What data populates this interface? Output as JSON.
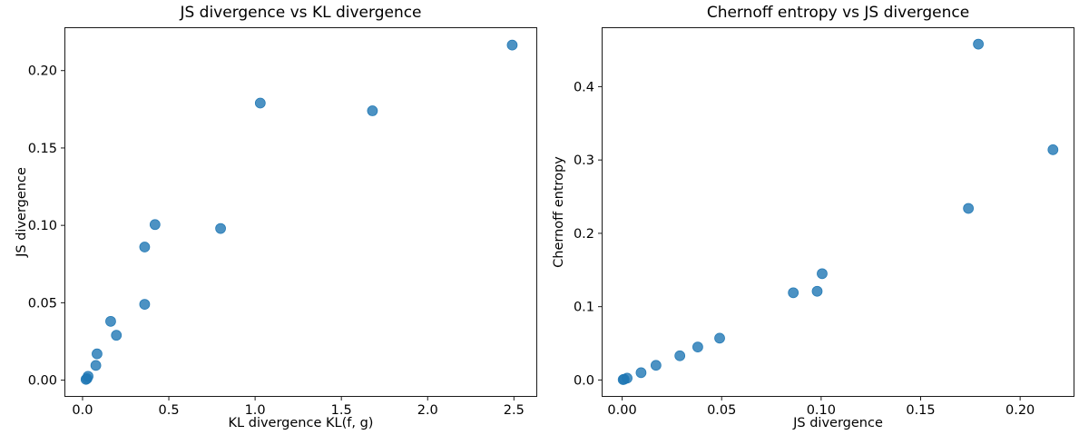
{
  "figure": {
    "background": "#ffffff"
  },
  "marker": {
    "color": "#1f77b4",
    "opacity": 0.8,
    "radius": 5.5
  },
  "chart_data": [
    {
      "type": "scatter",
      "title": "JS divergence vs KL divergence",
      "xlabel": "KL divergence KL(f, g)",
      "ylabel": "JS divergence",
      "xlim": [
        -0.105,
        2.635
      ],
      "ylim": [
        -0.0108,
        0.228
      ],
      "xticks": [
        0.0,
        0.5,
        1.0,
        1.5,
        2.0,
        2.5
      ],
      "xtick_labels": [
        "0.0",
        "0.5",
        "1.0",
        "1.5",
        "2.0",
        "2.5"
      ],
      "yticks": [
        0.0,
        0.05,
        0.1,
        0.15,
        0.2
      ],
      "ytick_labels": [
        "0.00",
        "0.05",
        "0.10",
        "0.15",
        "0.20"
      ],
      "grid": false,
      "legend": null,
      "x": [
        0.02,
        0.026,
        0.032,
        0.077,
        0.084,
        0.163,
        0.196,
        0.36,
        0.36,
        0.42,
        0.8,
        1.03,
        1.68,
        2.49
      ],
      "y": [
        0.0005,
        0.001,
        0.0025,
        0.0095,
        0.017,
        0.038,
        0.029,
        0.049,
        0.086,
        0.1005,
        0.098,
        0.179,
        0.174,
        0.2165
      ]
    },
    {
      "type": "scatter",
      "title": "Chernoff entropy vs JS divergence",
      "xlabel": "JS divergence",
      "ylabel": "Chernoff entropy",
      "xlim": [
        -0.0103,
        0.2273
      ],
      "ylim": [
        -0.023,
        0.481
      ],
      "xticks": [
        0.0,
        0.05,
        0.1,
        0.15,
        0.2
      ],
      "xtick_labels": [
        "0.00",
        "0.05",
        "0.10",
        "0.15",
        "0.20"
      ],
      "yticks": [
        0.0,
        0.1,
        0.2,
        0.3,
        0.4
      ],
      "ytick_labels": [
        "0.0",
        "0.1",
        "0.2",
        "0.3",
        "0.4"
      ],
      "grid": false,
      "legend": null,
      "x": [
        0.0005,
        0.001,
        0.0025,
        0.0095,
        0.017,
        0.038,
        0.029,
        0.049,
        0.086,
        0.1005,
        0.098,
        0.179,
        0.174,
        0.2165
      ],
      "y": [
        0.0005,
        0.001,
        0.0025,
        0.01,
        0.02,
        0.045,
        0.033,
        0.057,
        0.119,
        0.145,
        0.121,
        0.458,
        0.234,
        0.314
      ]
    }
  ]
}
